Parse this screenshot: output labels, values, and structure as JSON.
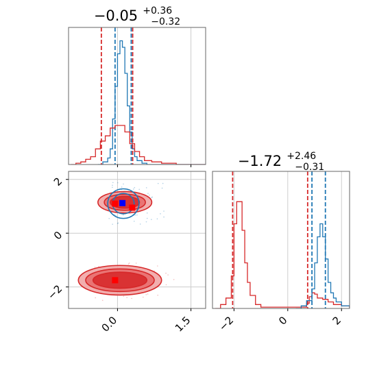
{
  "colors": {
    "blue": "#1f77b4",
    "red": "#d62728",
    "red_light": "#f0a0a0",
    "grid": "#cccccc",
    "axis": "#666666"
  },
  "chart_data": [
    {
      "type": "histogram",
      "panel": "top-left",
      "title": {
        "base": "−0.05",
        "sup": "+0.36",
        "sub": "−0.32"
      },
      "xlim": [
        -1.0,
        1.8
      ],
      "grid": true,
      "x_ticks": [
        0.0,
        1.5
      ],
      "series": [
        {
          "color": "blue",
          "bins": [
            [
              -0.4,
              0
            ],
            [
              -0.3,
              0.02
            ],
            [
              -0.2,
              0.05
            ],
            [
              -0.15,
              0.12
            ],
            [
              -0.1,
              0.35
            ],
            [
              -0.05,
              0.6
            ],
            [
              0.0,
              0.85
            ],
            [
              0.05,
              0.95
            ],
            [
              0.1,
              0.9
            ],
            [
              0.15,
              0.7
            ],
            [
              0.2,
              0.45
            ],
            [
              0.25,
              0.25
            ],
            [
              0.3,
              0.12
            ],
            [
              0.35,
              0.06
            ],
            [
              0.4,
              0.03
            ],
            [
              0.5,
              0.01
            ],
            [
              0.6,
              0
            ]
          ],
          "quantiles": [
            -0.05,
            0.28
          ]
        },
        {
          "color": "red",
          "bins": [
            [
              -0.95,
              0.0
            ],
            [
              -0.85,
              0.01
            ],
            [
              -0.75,
              0.02
            ],
            [
              -0.65,
              0.04
            ],
            [
              -0.55,
              0.06
            ],
            [
              -0.45,
              0.12
            ],
            [
              -0.35,
              0.18
            ],
            [
              -0.25,
              0.22
            ],
            [
              -0.15,
              0.28
            ],
            [
              -0.05,
              0.3
            ],
            [
              0.05,
              0.3
            ],
            [
              0.15,
              0.25
            ],
            [
              0.25,
              0.16
            ],
            [
              0.35,
              0.1
            ],
            [
              0.45,
              0.06
            ],
            [
              0.55,
              0.03
            ],
            [
              0.7,
              0.02
            ],
            [
              0.9,
              0.01
            ],
            [
              1.2,
              0
            ],
            [
              1.8,
              0
            ]
          ],
          "quantiles": [
            -0.33,
            0.31
          ]
        }
      ],
      "center_line": -0.05
    },
    {
      "type": "scatter",
      "panel": "bottom-left",
      "xlim": [
        -1.0,
        1.8
      ],
      "ylim": [
        -2.8,
        2.3
      ],
      "grid": true,
      "x_ticks": [
        0.0,
        1.5
      ],
      "y_ticks": [
        2,
        0,
        -2
      ],
      "contours": [
        {
          "color": "red",
          "center": [
            0.05,
            -1.75
          ],
          "levels": [
            [
              0.85,
              0.55
            ],
            [
              0.7,
              0.42
            ],
            [
              0.55,
              0.3
            ]
          ]
        },
        {
          "color": "red",
          "center": [
            0.15,
            1.15
          ],
          "levels": [
            [
              0.55,
              0.4
            ],
            [
              0.42,
              0.3
            ],
            [
              0.3,
              0.22
            ]
          ]
        },
        {
          "color": "blue",
          "center": [
            0.12,
            1.1
          ],
          "levels": [
            [
              0.32,
              0.55
            ],
            [
              0.22,
              0.38
            ]
          ]
        }
      ],
      "markers": [
        {
          "color": "red",
          "x": -0.05,
          "y": -1.75
        },
        {
          "color": "red",
          "x": -0.05,
          "y": 1.1
        },
        {
          "color": "blue",
          "x": 0.1,
          "y": 1.12
        },
        {
          "color": "red",
          "x": 0.3,
          "y": 0.95
        }
      ]
    },
    {
      "type": "histogram",
      "panel": "bottom-right",
      "title": {
        "base": "−1.72",
        "sup": "+2.46",
        "sub": "−0.31"
      },
      "xlim": [
        -2.8,
        2.3
      ],
      "grid": true,
      "x_ticks": [
        -2,
        0,
        2
      ],
      "series": [
        {
          "color": "red",
          "bins": [
            [
              -2.7,
              0.0
            ],
            [
              -2.5,
              0.03
            ],
            [
              -2.3,
              0.08
            ],
            [
              -2.1,
              0.25
            ],
            [
              -2.0,
              0.65
            ],
            [
              -1.9,
              0.82
            ],
            [
              -1.8,
              0.82
            ],
            [
              -1.7,
              0.6
            ],
            [
              -1.6,
              0.35
            ],
            [
              -1.5,
              0.2
            ],
            [
              -1.4,
              0.1
            ],
            [
              -1.2,
              0.03
            ],
            [
              -1.0,
              0.01
            ],
            [
              0.5,
              0.01
            ],
            [
              0.7,
              0.04
            ],
            [
              0.8,
              0.09
            ],
            [
              0.9,
              0.12
            ],
            [
              1.0,
              0.11
            ],
            [
              1.1,
              0.08
            ],
            [
              1.3,
              0.07
            ],
            [
              1.5,
              0.05
            ],
            [
              1.7,
              0.03
            ],
            [
              2.0,
              0.02
            ],
            [
              2.3,
              0
            ]
          ],
          "quantiles": [
            -2.05,
            0.74
          ]
        },
        {
          "color": "blue",
          "bins": [
            [
              0.3,
              0
            ],
            [
              0.5,
              0.02
            ],
            [
              0.7,
              0.06
            ],
            [
              0.9,
              0.15
            ],
            [
              1.0,
              0.35
            ],
            [
              1.1,
              0.55
            ],
            [
              1.2,
              0.65
            ],
            [
              1.3,
              0.55
            ],
            [
              1.4,
              0.38
            ],
            [
              1.5,
              0.2
            ],
            [
              1.6,
              0.12
            ],
            [
              1.7,
              0.08
            ],
            [
              1.8,
              0.05
            ],
            [
              2.0,
              0.02
            ],
            [
              2.3,
              0
            ]
          ],
          "quantiles": [
            0.9,
            1.4
          ]
        }
      ],
      "center_line": -1.72
    }
  ]
}
